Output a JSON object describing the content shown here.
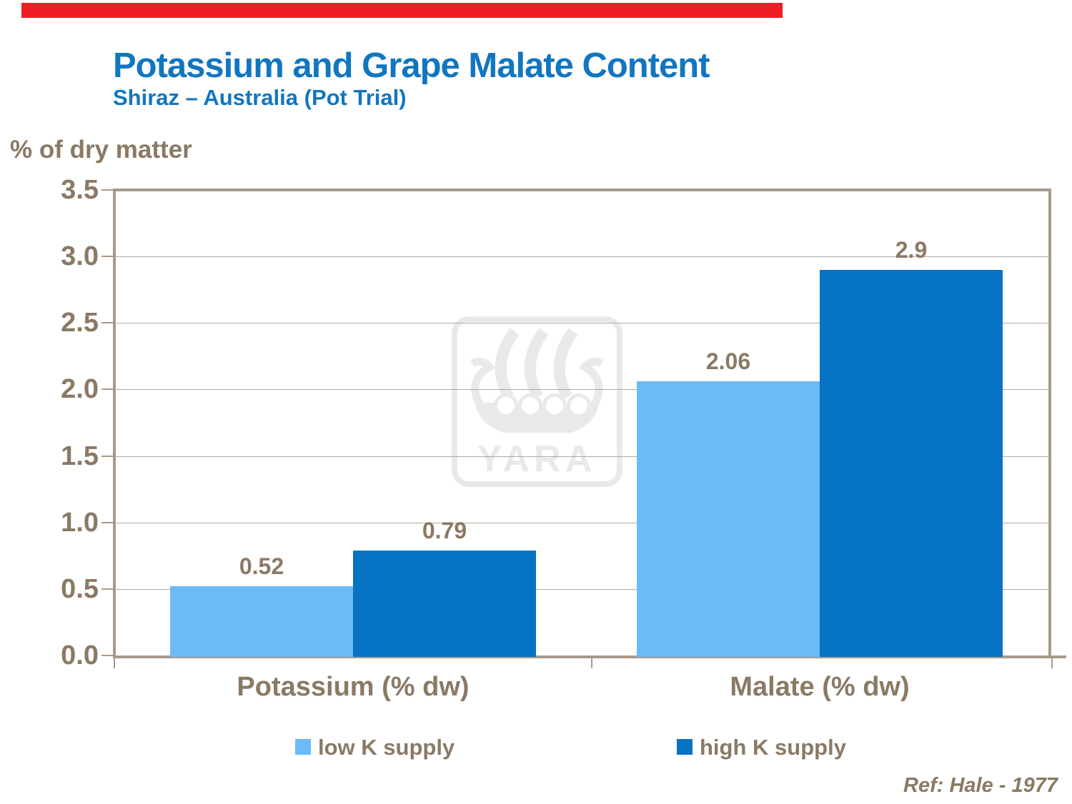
{
  "slide": {
    "title": "Potassium and Grape Malate Content",
    "subtitle": "Shiraz – Australia (Pot Trial)",
    "ref": "Ref: Hale - 1977",
    "accent_bar_color": "#ee1c25",
    "title_color": "#1176c0"
  },
  "chart_data": {
    "type": "bar",
    "title": "Potassium and Grape Malate Content",
    "subtitle": "Shiraz – Australia (Pot Trial)",
    "ylabel": "% of dry matter",
    "xlabel": "",
    "categories": [
      "Potassium (% dw)",
      "Malate (% dw)"
    ],
    "series": [
      {
        "name": "low K supply",
        "color": "#6cbaf6",
        "values": [
          0.52,
          2.06
        ],
        "labels": [
          "0.52",
          "2.06"
        ]
      },
      {
        "name": "high K supply",
        "color": "#0773c5",
        "values": [
          0.79,
          2.9
        ],
        "labels": [
          "0.79",
          "2.9"
        ]
      }
    ],
    "ylim": [
      0,
      3.5
    ],
    "ytick_step": 0.5,
    "yticks": [
      "3.5",
      "3.0",
      "2.5",
      "2.0",
      "1.5",
      "1.0",
      "0.5",
      "0.0"
    ],
    "grid": true,
    "legend_position": "bottom",
    "text_color": "#8a7964",
    "axis_color": "#a89a8b"
  },
  "watermark": {
    "text": "YARA",
    "color": "#e9e9e9"
  }
}
